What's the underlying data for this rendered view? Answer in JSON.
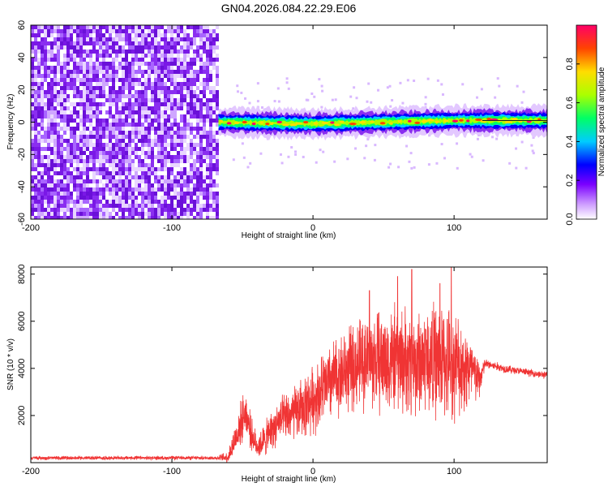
{
  "title": "GN04.2026.084.22.29.E06",
  "colors": {
    "axis": "#000000",
    "snr_line": "#f03434",
    "spectro_noise": "#7a18e6",
    "colormap": [
      "#ffffff",
      "#7a00ff",
      "#0000ff",
      "#00ccff",
      "#00ff66",
      "#aaff00",
      "#ffdd00",
      "#ff4400",
      "#ff0066"
    ]
  },
  "chart_data": [
    {
      "type": "heatmap",
      "name": "spectrogram",
      "xlabel": "Height of straight line (km)",
      "ylabel": "Frequency (Hz)",
      "xlim": [
        -200,
        166
      ],
      "ylim": [
        -60,
        60
      ],
      "xticks": [
        -200,
        -100,
        0,
        100
      ],
      "yticks": [
        -60,
        -40,
        -20,
        0,
        20,
        40,
        60
      ],
      "colorbar": {
        "label": "Normalized spectral amplitude",
        "range": [
          0.0,
          1.0
        ],
        "ticks": [
          "0.0",
          "0.2",
          "0.4",
          "0.6",
          "0.8"
        ]
      },
      "regions": [
        {
          "x_range": [
            -200,
            -67
          ],
          "description_value": "broadband noise at ~0.05-0.2 normalized amplitude across all frequencies"
        },
        {
          "x_range": [
            -67,
            166
          ],
          "center_frequency_hz": [
            [
              -67,
              0
            ],
            [
              0,
              -1
            ],
            [
              50,
              0
            ],
            [
              100,
              1
            ],
            [
              166,
              1
            ]
          ],
          "peak_amplitude": 1.0,
          "band_halfwidth_hz": 4
        }
      ]
    },
    {
      "type": "line",
      "name": "snr",
      "xlabel": "Height of straight line (km)",
      "ylabel": "SNR (10 * v/v)",
      "xlim": [
        -200,
        166
      ],
      "ylim": [
        0,
        8300
      ],
      "xticks": [
        -200,
        -100,
        0,
        100
      ],
      "yticks": [
        2000,
        4000,
        6000,
        8000
      ],
      "envelope": {
        "x": [
          -200,
          -150,
          -100,
          -67,
          -60,
          -52,
          -48,
          -44,
          -40,
          -35,
          -25,
          -10,
          0,
          10,
          20,
          30,
          40,
          50,
          60,
          70,
          80,
          90,
          100,
          110,
          118,
          122,
          135,
          150,
          166
        ],
        "mean": [
          200,
          200,
          200,
          200,
          250,
          1500,
          2200,
          1300,
          700,
          900,
          1700,
          2200,
          2700,
          3300,
          3800,
          4100,
          4400,
          4300,
          4400,
          4200,
          4400,
          4300,
          4200,
          4000,
          3500,
          4200,
          4000,
          3850,
          3700
        ],
        "amp": [
          80,
          80,
          80,
          80,
          300,
          900,
          900,
          700,
          500,
          700,
          900,
          1200,
          1400,
          1600,
          1700,
          1800,
          2000,
          2200,
          2200,
          2200,
          2300,
          2400,
          2200,
          1800,
          800,
          200,
          180,
          150,
          150
        ]
      },
      "peaks": [
        [
          40,
          7300
        ],
        [
          60,
          7900
        ],
        [
          70,
          8200
        ],
        [
          90,
          7600
        ],
        [
          98,
          8300
        ]
      ]
    }
  ]
}
